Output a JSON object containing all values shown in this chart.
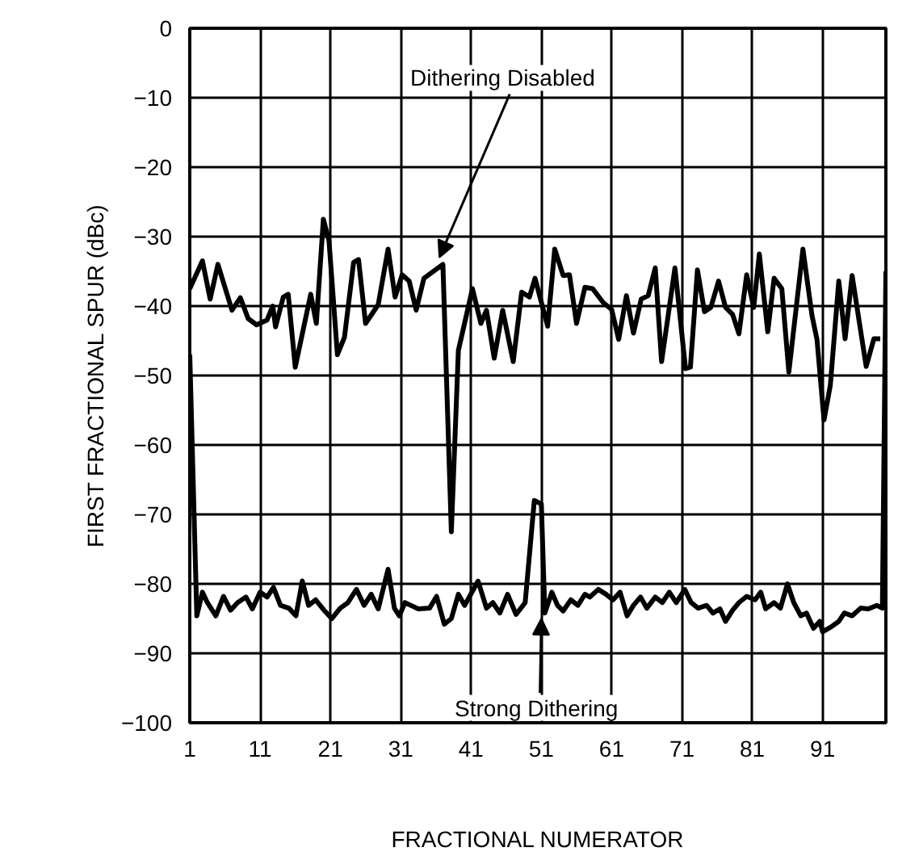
{
  "chart_data": {
    "type": "line",
    "xlabel": "FRACTIONAL NUMERATOR",
    "ylabel": "FIRST FRACTIONAL SPUR (dBc)",
    "xlim": [
      1,
      100
    ],
    "xticks": [
      1,
      11,
      21,
      31,
      41,
      51,
      61,
      71,
      81,
      91
    ],
    "ylim": [
      -100,
      0
    ],
    "yticks": [
      0,
      -10,
      -20,
      -30,
      -40,
      -50,
      -60,
      -70,
      -80,
      -90,
      -100
    ],
    "grid": true,
    "marker": "none",
    "line_style": "solid",
    "series": [
      {
        "color": "#000000",
        "x": [
          1,
          2.8,
          3.9,
          5,
          7,
          8.2,
          9.3,
          10.5,
          12,
          12.8,
          13.2,
          14.3,
          15,
          16,
          18.2,
          19,
          20,
          20.8,
          22,
          23,
          24.3,
          25,
          26,
          27.8,
          29.2,
          30.2,
          31.2,
          32.2,
          33.2,
          34.3,
          37,
          38.2,
          39.2,
          41.2,
          42.4,
          43.2,
          44.3,
          45.5,
          47,
          48.2,
          49.3,
          50.1,
          51.9,
          52.9,
          54.1,
          55,
          56,
          57.2,
          58.3,
          59.8,
          61,
          62,
          63.1,
          64.1,
          65.2,
          66.2,
          67.2,
          68.1,
          70,
          71.5,
          72.2,
          73.2,
          74.2,
          75.1,
          76.2,
          77.2,
          78.2,
          79.1,
          80.2,
          81.2,
          82,
          83.2,
          84.1,
          85.2,
          86.2,
          88.2,
          89.5,
          90.2,
          91.2,
          92.1,
          93.3,
          94.2,
          95.2,
          96.2,
          97.2,
          98.3,
          99.2
        ],
        "values": [
          -37.5,
          -33.5,
          -39,
          -34,
          -40.6,
          -38.8,
          -41.8,
          -42.7,
          -42,
          -40,
          -43,
          -38.7,
          -38.3,
          -48.8,
          -38.3,
          -42.5,
          -27.5,
          -30.6,
          -47,
          -44.5,
          -33.7,
          -33.3,
          -42.5,
          -39.8,
          -31.8,
          -38.7,
          -35.5,
          -36.4,
          -40.6,
          -36,
          -34,
          -72.5,
          -46.4,
          -37.5,
          -42.5,
          -40.6,
          -47.5,
          -40.6,
          -48,
          -38,
          -38.7,
          -36,
          -42.9,
          -31.8,
          -35.6,
          -35.5,
          -42.5,
          -37.3,
          -37.5,
          -39.5,
          -40.5,
          -44.8,
          -38.5,
          -43.9,
          -39,
          -38.5,
          -34.5,
          -48,
          -34.5,
          -49,
          -48.8,
          -34.8,
          -40.8,
          -40.2,
          -36.4,
          -40.2,
          -41.2,
          -44,
          -35.5,
          -40.2,
          -32.5,
          -43.7,
          -36,
          -37.5,
          -49.5,
          -31.8,
          -41.4,
          -44.8,
          -56.4,
          -51.4,
          -36.4,
          -44.7,
          -35.6,
          -42.2,
          -48.7,
          -44.7,
          -44.7
        ]
      },
      {
        "color": "#000000",
        "x": [
          1,
          2,
          2.8,
          3.5,
          4.7,
          5.8,
          6.8,
          7.8,
          9,
          9.9,
          11,
          12,
          12.9,
          13.9,
          15.1,
          16.1,
          17,
          17.9,
          18.9,
          20.1,
          21.2,
          22.4,
          23.5,
          24.7,
          25.8,
          26.8,
          27.8,
          29.2,
          30.1,
          30.8,
          31.6,
          33.5,
          35.1,
          36.1,
          37.2,
          38.2,
          39.2,
          40.1,
          42,
          43.2,
          44.1,
          45.1,
          46.2,
          47.4,
          48.7,
          50,
          51,
          51.5,
          52.5,
          53.3,
          54.1,
          55.2,
          56.2,
          57.2,
          57.9,
          59.1,
          60.2,
          61.2,
          62.2,
          63.2,
          64.1,
          65.1,
          66,
          67.2,
          68.2,
          69.2,
          70.2,
          71.4,
          72.3,
          73.3,
          74.5,
          75.4,
          76.4,
          77.2,
          78.2,
          79.1,
          80.2,
          81.4,
          82.2,
          82.9,
          84.1,
          85,
          86,
          86.9,
          87.9,
          88.7,
          89.7,
          90.6,
          91,
          92.2,
          93.3,
          94.1,
          95.2,
          96.4,
          97.5,
          98.7,
          99.5,
          100
        ],
        "values": [
          -47,
          -84.6,
          -81.2,
          -82.7,
          -84.6,
          -81.8,
          -83.8,
          -82.7,
          -81.9,
          -83.6,
          -81.2,
          -81.9,
          -80.5,
          -83.1,
          -83.5,
          -84.6,
          -79.6,
          -83.1,
          -82.3,
          -83.8,
          -85,
          -83.5,
          -82.7,
          -80.8,
          -83.1,
          -81.5,
          -83.6,
          -77.9,
          -83.5,
          -84.6,
          -82.7,
          -83.6,
          -83.5,
          -81.8,
          -85.8,
          -85,
          -81.5,
          -83.1,
          -79.6,
          -83.5,
          -82.7,
          -84.2,
          -81.5,
          -84.4,
          -82.7,
          -68,
          -68.5,
          -84.2,
          -81.2,
          -83.1,
          -83.9,
          -82.3,
          -83.1,
          -81.5,
          -81.9,
          -80.8,
          -81.5,
          -82.3,
          -81.2,
          -84.6,
          -83.1,
          -81.9,
          -83.5,
          -81.9,
          -82.7,
          -81.2,
          -82.7,
          -80.8,
          -82.7,
          -83.5,
          -83.1,
          -84.2,
          -83.6,
          -85.4,
          -83.8,
          -82.7,
          -81.8,
          -82.3,
          -81.2,
          -83.6,
          -82.7,
          -83.5,
          -80,
          -82.7,
          -84.6,
          -84.2,
          -86.4,
          -85.4,
          -86.9,
          -86.2,
          -85.4,
          -84.2,
          -84.6,
          -83.5,
          -83.6,
          -83.1,
          -83.5,
          -35
        ]
      }
    ],
    "annotations": [
      {
        "text": "Dithering Disabled",
        "x": 36.5,
        "y": -34
      },
      {
        "text": "Strong Dithering",
        "x": 51,
        "y": -84
      }
    ]
  }
}
